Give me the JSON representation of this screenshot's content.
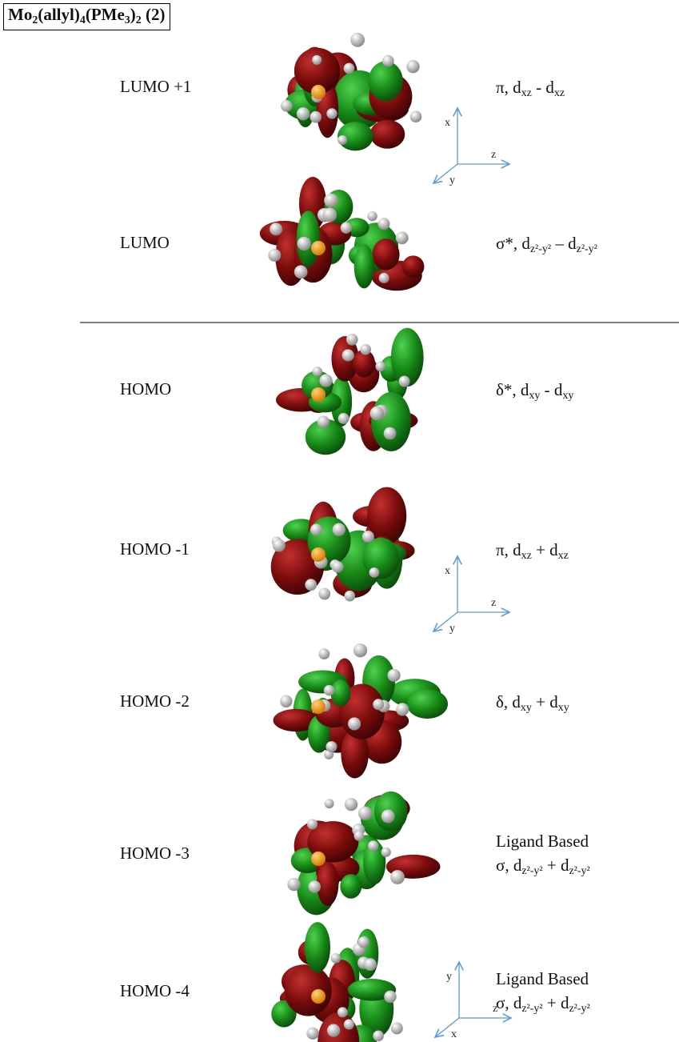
{
  "title": [
    "Mo",
    "2",
    "(allyl)",
    "4",
    "(PMe",
    "3",
    ")",
    "2",
    " (2)"
  ],
  "orbitals": [
    {
      "label": "LUMO +1",
      "description": [
        "π, d",
        "xz",
        " - d",
        "xz"
      ]
    },
    {
      "label": "LUMO",
      "description": [
        "σ*, d",
        "z²-y²",
        " – d",
        "z²-y²"
      ]
    },
    {
      "label": "HOMO",
      "description": [
        "δ*, d",
        "xy",
        " - d",
        "xy"
      ]
    },
    {
      "label": "HOMO -1",
      "description": [
        "π, d",
        "xz",
        " + d",
        "xz"
      ]
    },
    {
      "label": "HOMO -2",
      "description": [
        "δ, d",
        "xy",
        " + d",
        "xy"
      ]
    },
    {
      "label": "HOMO -3",
      "note": "Ligand Based",
      "description": [
        "σ, d",
        "z²-y²",
        " + d",
        "z²-y²"
      ]
    },
    {
      "label": "HOMO -4",
      "note": "Ligand Based",
      "description": [
        "σ, d",
        "z²-y²",
        " + d",
        "z²-y²"
      ]
    }
  ],
  "axes": [
    {
      "vertical": "x",
      "horizontal": "z",
      "depth": "y"
    },
    {
      "vertical": "x",
      "horizontal": "z",
      "depth": "y"
    },
    {
      "vertical": "y",
      "horizontal": "z",
      "depth": "x"
    }
  ]
}
